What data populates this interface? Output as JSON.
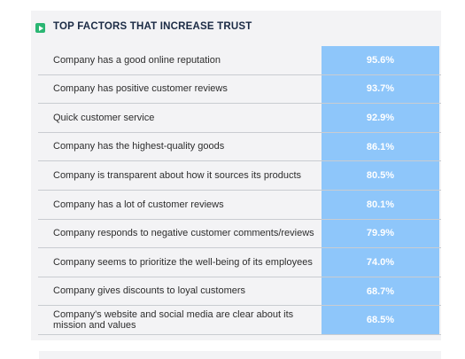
{
  "title": "TOP FACTORS THAT INCREASE TRUST",
  "chart_data": {
    "type": "table",
    "title": "TOP FACTORS THAT INCREASE TRUST",
    "categories": [
      "Company has a good online reputation",
      "Company has positive customer reviews",
      "Quick customer service",
      "Company has the highest-quality goods",
      "Company is transparent about how it sources its products",
      "Company has a lot of customer reviews",
      "Company responds to negative customer comments/reviews",
      "Company seems to prioritize the well-being of its employees",
      "Company gives discounts to loyal customers",
      "Company's website and social media are clear about its mission and values"
    ],
    "values": [
      95.6,
      93.7,
      92.9,
      86.1,
      80.5,
      80.1,
      79.9,
      74.0,
      68.7,
      68.5
    ],
    "value_labels": [
      "95.6%",
      "93.7%",
      "92.9%",
      "86.1%",
      "80.5%",
      "80.1%",
      "79.9%",
      "74.0%",
      "68.7%",
      "68.5%"
    ],
    "colors": {
      "value_cell": "#8ec6fa",
      "accent_icon": "#2bb673",
      "title": "#1a2a44"
    }
  }
}
